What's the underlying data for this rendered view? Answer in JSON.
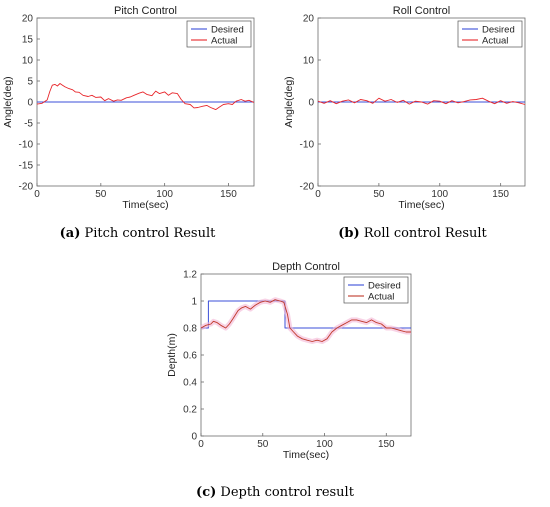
{
  "captions": [
    {
      "tag": "(a)",
      "text": " Pitch control Result"
    },
    {
      "tag": "(b)",
      "text": " Roll control Result"
    },
    {
      "tag": "(c)",
      "text": " Depth control result"
    }
  ],
  "chart_data": [
    {
      "type": "line",
      "title": "Pitch Control",
      "xlabel": "Time(sec)",
      "ylabel": "Angle(deg)",
      "xlim": [
        0,
        170
      ],
      "ylim": [
        -20,
        20
      ],
      "xticks": [
        0,
        50,
        100,
        150
      ],
      "yticks": [
        20,
        15,
        10,
        5,
        0,
        -5,
        -10,
        -15,
        -20
      ],
      "grid": false,
      "legend": "top-right",
      "series": [
        {
          "name": "Desired",
          "color": "#3b4fd8",
          "x": [
            0,
            170
          ],
          "y": [
            0,
            0
          ]
        },
        {
          "name": "Actual",
          "color": "#e8262b",
          "x": [
            0,
            4,
            8,
            10,
            12,
            14,
            16,
            18,
            20,
            22,
            25,
            28,
            30,
            33,
            36,
            40,
            43,
            46,
            50,
            53,
            56,
            60,
            63,
            66,
            70,
            73,
            76,
            80,
            83,
            86,
            90,
            93,
            96,
            100,
            103,
            106,
            110,
            113,
            116,
            120,
            123,
            126,
            130,
            133,
            136,
            140,
            143,
            146,
            150,
            153,
            156,
            160,
            163,
            166,
            170
          ],
          "y": [
            -0.5,
            -0.3,
            0.5,
            2.5,
            4,
            4.2,
            3.8,
            4.4,
            4,
            3.6,
            3.2,
            2.9,
            2.4,
            2.3,
            1.6,
            1.3,
            1.6,
            1.1,
            1.2,
            0.3,
            0.8,
            0.2,
            0.5,
            0.4,
            1.0,
            1.2,
            1.6,
            2.1,
            2.4,
            1.8,
            1.5,
            2.6,
            2.0,
            2.4,
            1.6,
            2.2,
            2.0,
            0.6,
            -0.4,
            -0.6,
            -1.4,
            -1.3,
            -1.0,
            -0.8,
            -1.3,
            -1.8,
            -1.2,
            -0.6,
            -0.4,
            -0.6,
            0.2,
            0.6,
            0.2,
            0.4,
            -0.1
          ]
        }
      ]
    },
    {
      "type": "line",
      "title": "Roll Control",
      "xlabel": "Time(sec)",
      "ylabel": "Angle(deg)",
      "xlim": [
        0,
        170
      ],
      "ylim": [
        -20,
        20
      ],
      "xticks": [
        0,
        50,
        100,
        150
      ],
      "yticks": [
        20,
        10,
        0,
        -10,
        -20
      ],
      "grid": false,
      "legend": "top-right",
      "series": [
        {
          "name": "Desired",
          "color": "#3b4fd8",
          "x": [
            0,
            170
          ],
          "y": [
            0,
            0
          ]
        },
        {
          "name": "Actual",
          "color": "#e8262b",
          "x": [
            0,
            5,
            10,
            15,
            20,
            25,
            30,
            35,
            40,
            45,
            50,
            55,
            60,
            65,
            70,
            75,
            80,
            85,
            90,
            95,
            100,
            105,
            110,
            115,
            120,
            125,
            130,
            135,
            140,
            145,
            150,
            155,
            160,
            165,
            170
          ],
          "y": [
            0.2,
            -0.3,
            0.3,
            -0.4,
            0.2,
            0.5,
            -0.2,
            0.6,
            0.3,
            -0.3,
            0.9,
            0.2,
            0.6,
            -0.1,
            0.4,
            -0.5,
            0.2,
            0.0,
            -0.5,
            0.3,
            0.2,
            -0.4,
            0.3,
            -0.2,
            0.1,
            0.5,
            0.6,
            0.9,
            0.2,
            -0.4,
            0.3,
            -0.3,
            0.1,
            -0.2,
            -0.6
          ]
        }
      ]
    },
    {
      "type": "line",
      "title": "Depth Control",
      "xlabel": "Time(sec)",
      "ylabel": "Depth(m)",
      "xlim": [
        0,
        170
      ],
      "ylim": [
        0,
        1.2
      ],
      "xticks": [
        0,
        50,
        100,
        150
      ],
      "yticks": [
        1.2,
        1,
        0.8,
        0.6,
        0.4,
        0.2,
        0
      ],
      "grid": false,
      "legend": "top-right",
      "series": [
        {
          "name": "Desired",
          "color": "#3b4fd8",
          "x": [
            0,
            6,
            6,
            68,
            68,
            170
          ],
          "y": [
            0.8,
            0.8,
            1.0,
            1.0,
            0.8,
            0.8
          ]
        },
        {
          "name": "Actual",
          "color": "#c0392b",
          "x": [
            0,
            4,
            8,
            10,
            13,
            16,
            20,
            23,
            26,
            28,
            30,
            33,
            36,
            40,
            44,
            48,
            52,
            56,
            60,
            64,
            67,
            70,
            72,
            75,
            78,
            82,
            86,
            90,
            94,
            98,
            102,
            106,
            110,
            114,
            118,
            122,
            126,
            130,
            134,
            138,
            142,
            146,
            150,
            154,
            158,
            162,
            166,
            170
          ],
          "y": [
            0.8,
            0.82,
            0.83,
            0.85,
            0.84,
            0.82,
            0.8,
            0.83,
            0.87,
            0.9,
            0.93,
            0.95,
            0.96,
            0.94,
            0.97,
            0.99,
            1.0,
            0.99,
            1.01,
            1.0,
            0.99,
            0.9,
            0.8,
            0.77,
            0.74,
            0.72,
            0.71,
            0.7,
            0.71,
            0.7,
            0.72,
            0.77,
            0.8,
            0.82,
            0.84,
            0.86,
            0.86,
            0.85,
            0.84,
            0.86,
            0.84,
            0.83,
            0.8,
            0.8,
            0.79,
            0.78,
            0.77,
            0.77
          ]
        }
      ]
    }
  ]
}
